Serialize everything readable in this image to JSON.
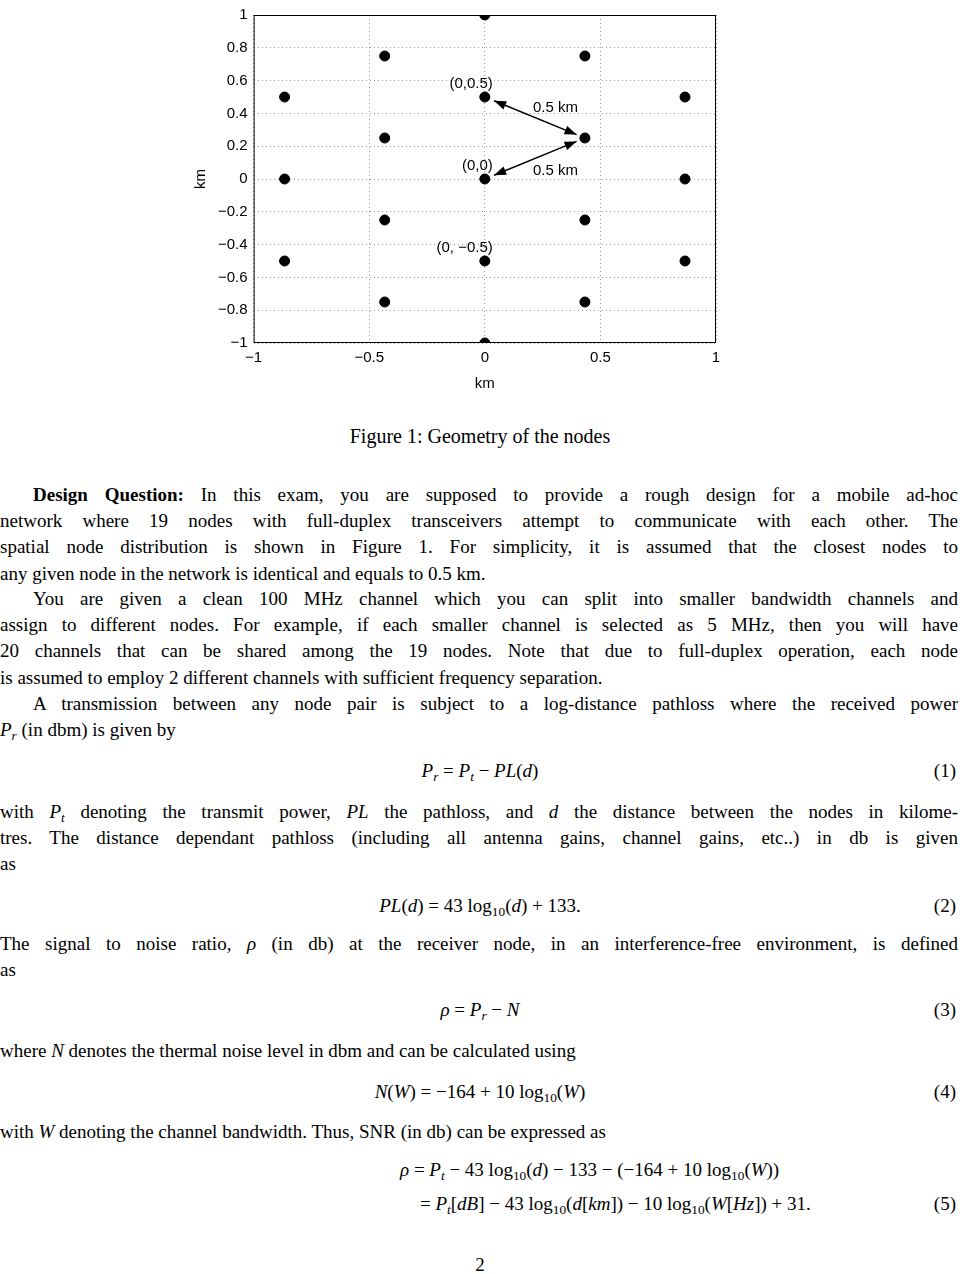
{
  "chart_data": {
    "type": "scatter",
    "x_label": "km",
    "y_label": "km",
    "x": [
      0,
      0,
      0,
      0,
      0,
      -0.433,
      -0.433,
      -0.433,
      -0.433,
      0.433,
      0.433,
      0.433,
      0.433,
      -0.866,
      -0.866,
      -0.866,
      0.866,
      0.866,
      0.866
    ],
    "values": [
      1,
      0.5,
      0,
      -0.5,
      -1,
      0.75,
      0.25,
      -0.25,
      -0.75,
      0.75,
      0.25,
      -0.25,
      -0.75,
      0.5,
      0,
      -0.5,
      0.5,
      0,
      -0.5
    ],
    "color": "#000000",
    "marker": "circle",
    "xlim": [
      -1,
      1
    ],
    "xticks": [
      {
        "value": -1,
        "label": "−1"
      },
      {
        "value": -0.5,
        "label": "−0.5"
      },
      0,
      0.5,
      1
    ],
    "ylim": [
      -1,
      1
    ],
    "yticks": [
      {
        "value": -1,
        "label": "−1"
      },
      {
        "value": -0.8,
        "label": "−0.8"
      },
      {
        "value": -0.6,
        "label": "−0.6"
      },
      {
        "value": -0.4,
        "label": "−0.4"
      },
      {
        "value": -0.2,
        "label": "−0.2"
      },
      0,
      0.2,
      0.4,
      0.6,
      0.8,
      1
    ],
    "grid": true,
    "annotations": [
      {
        "text": "(0,0.5)",
        "x": 0,
        "y": 0.5
      },
      {
        "text": "(0,0)",
        "x": 0,
        "y": 0
      },
      {
        "text": "(0, −0.5)",
        "x": 0,
        "y": -0.5
      },
      {
        "text": "0.5 km",
        "from": [
          0,
          0.5
        ],
        "to": [
          0.433,
          0.25
        ]
      },
      {
        "text": "0.5 km",
        "from": [
          0,
          0
        ],
        "to": [
          0.433,
          0.25
        ]
      }
    ]
  },
  "caption": "Figure 1: Geometry of the nodes",
  "body": [
    {
      "type": "paragraph",
      "lines": [
        [
          {
            "b": "Design Question:"
          },
          " In this exam, you are supposed to provide a rough design for a mobile ad-hoc"
        ],
        [
          "network where 19 nodes with full-duplex transceivers attempt to communicate with each other. The"
        ],
        [
          "spatial node distribution is shown in Figure 1. For simplicity, it is assumed that the closest nodes to"
        ],
        [
          "any given node in the network is identical and equals to 0.5 km."
        ]
      ]
    },
    {
      "type": "paragraph",
      "lines": [
        [
          "You are given a clean 100 MHz channel which you can split into smaller bandwidth channels and"
        ],
        [
          "assign to different nodes. For example, if each smaller channel is selected as 5 MHz, then you will have"
        ],
        [
          "20 channels that can be shared among the 19 nodes. Note that due to full-duplex operation, each node"
        ],
        [
          "is assumed to employ 2 different channels with sufficient frequency separation."
        ]
      ]
    },
    {
      "type": "paragraph",
      "lines": [
        [
          "A transmission between any node pair is subject to a log-distance pathloss where the received power"
        ],
        [
          {
            "i": "P"
          },
          {
            "sub": "r"
          },
          " (in dbm) is given by"
        ]
      ]
    },
    {
      "type": "equation",
      "number": "(1)",
      "lines": [
        [
          {
            "i": "P"
          },
          {
            "sub": "r"
          },
          " = ",
          {
            "i": "P"
          },
          {
            "sub": "t"
          },
          " − ",
          {
            "i": "PL"
          },
          "(",
          {
            "i": "d"
          },
          ")"
        ]
      ]
    },
    {
      "type": "paragraph",
      "lines": [
        [
          "with ",
          {
            "i": "P"
          },
          {
            "sub": "t"
          },
          " denoting the transmit power, ",
          {
            "i": "PL"
          },
          " the pathloss, and ",
          {
            "i": "d"
          },
          " the distance between the nodes in kilome-"
        ],
        [
          "tres. The distance dependant pathloss (including all antenna gains, channel gains, etc..) in db is given"
        ],
        [
          "as"
        ]
      ]
    },
    {
      "type": "equation",
      "number": "(2)",
      "lines": [
        [
          {
            "i": "PL"
          },
          "(",
          {
            "i": "d"
          },
          ") = 43 log",
          {
            "sub": "10"
          },
          "(",
          {
            "i": "d"
          },
          ") + 133."
        ]
      ]
    },
    {
      "type": "paragraph",
      "lines": [
        [
          "The signal to noise ratio, ",
          {
            "i": "ρ"
          },
          " (in db) at the receiver node, in an interference-free environment, is defined"
        ],
        [
          "as"
        ]
      ]
    },
    {
      "type": "equation",
      "number": "(3)",
      "lines": [
        [
          {
            "i": "ρ"
          },
          " = ",
          {
            "i": "P"
          },
          {
            "sub": "r"
          },
          " − ",
          {
            "i": "N"
          }
        ]
      ]
    },
    {
      "type": "paragraph",
      "lines": [
        [
          "where ",
          {
            "i": "N"
          },
          " denotes the thermal noise level in dbm and can be calculated using"
        ]
      ]
    },
    {
      "type": "equation",
      "number": "(4)",
      "lines": [
        [
          {
            "i": "N"
          },
          "(",
          {
            "i": "W"
          },
          ") = −164 + 10 log",
          {
            "sub": "10"
          },
          "(",
          {
            "i": "W"
          },
          ")"
        ]
      ]
    },
    {
      "type": "paragraph",
      "lines": [
        [
          "with ",
          {
            "i": "W"
          },
          " denoting the channel bandwidth. Thus, SNR (in db) can be expressed as"
        ]
      ]
    },
    {
      "type": "equation",
      "number": "(5)",
      "lines": [
        [
          {
            "i": "ρ"
          },
          " = ",
          {
            "i": "P"
          },
          {
            "sub": "t"
          },
          " − 43 log",
          {
            "sub": "10"
          },
          "(",
          {
            "i": "d"
          },
          ") − 133 − (−164 + 10 log",
          {
            "sub": "10"
          },
          "(",
          {
            "i": "W"
          },
          "))"
        ],
        [
          "= ",
          {
            "i": "P"
          },
          {
            "sub": "t"
          },
          "[",
          {
            "i": "dB"
          },
          "] − 43 log",
          {
            "sub": "10"
          },
          "(",
          {
            "i": "d"
          },
          "[",
          {
            "i": "km"
          },
          "]) − 10 log",
          {
            "sub": "10"
          },
          "(",
          {
            "i": "W"
          },
          "[",
          {
            "i": "Hz"
          },
          "]) + 31."
        ]
      ]
    }
  ],
  "page_number": "2"
}
